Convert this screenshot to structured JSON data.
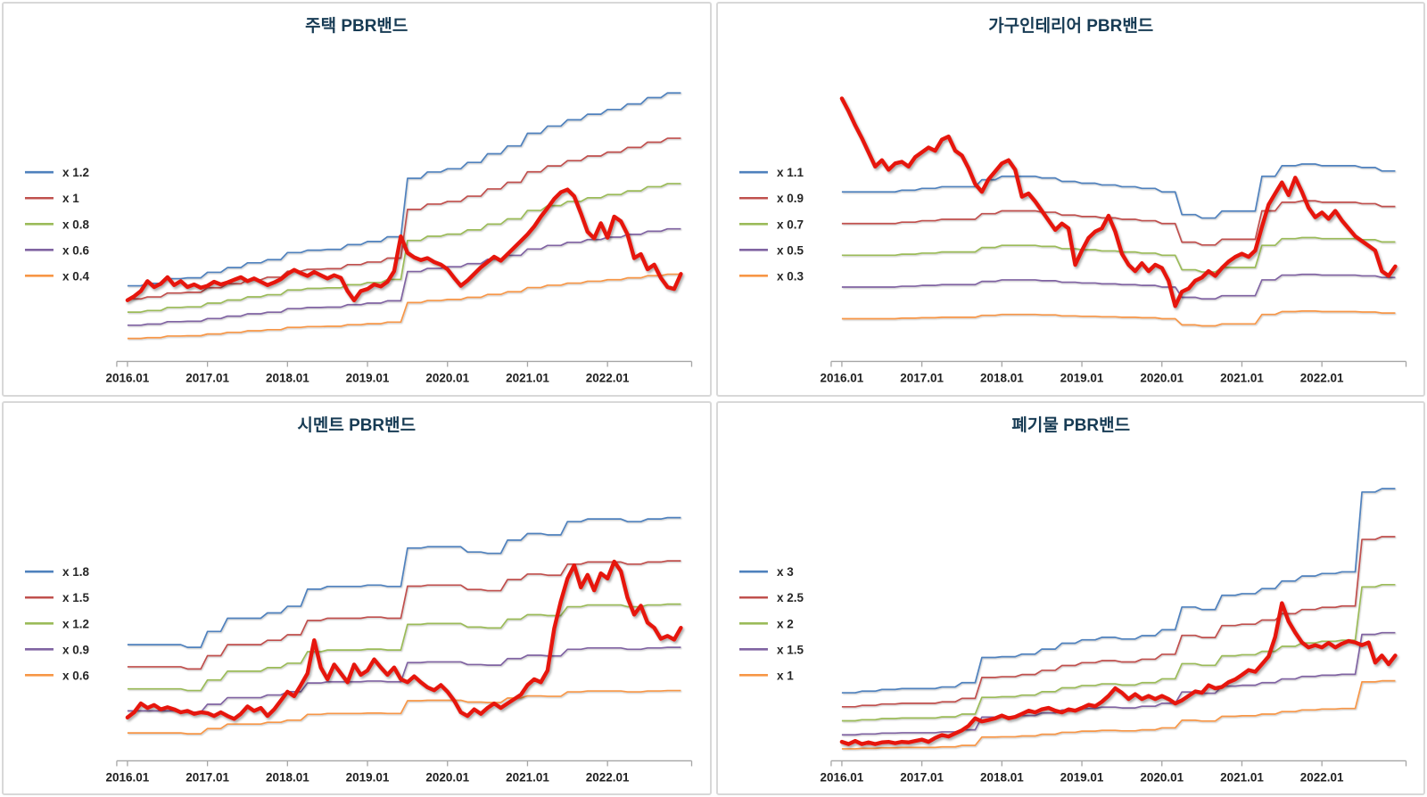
{
  "window": {
    "background": "#ffffff",
    "panel_border": "#d8d8d8"
  },
  "colors": {
    "band_colors": [
      "#4F81BD",
      "#C0504D",
      "#9BBB59",
      "#8064A2",
      "#F79646"
    ],
    "price_color": "#E6150B",
    "title_color": "#173B54",
    "axis_color": "#A6A6A6",
    "tick_label_color": "#1F1F1F",
    "legend_label_color": "#262626"
  },
  "x_axis": {
    "tick_labels": [
      "2016.01",
      "2017.01",
      "2018.01",
      "2019.01",
      "2020.01",
      "2021.01",
      "2022.01"
    ],
    "months_total": 84,
    "months_per_tick": 12
  },
  "chart_data": [
    {
      "type": "line",
      "key": "housing",
      "title": "주택 PBR밴드",
      "legend": [
        "x 1.2",
        "x 1",
        "x 0.8",
        "x 0.6",
        "x 0.4"
      ],
      "legend_position": "left",
      "grid": "off",
      "multipliers": [
        1.2,
        1,
        0.8,
        0.6,
        0.4
      ],
      "ylim": [
        0.05,
        4.55
      ],
      "base_quarterly": [
        1.0,
        1.03,
        1.09,
        1.1,
        1.17,
        1.23,
        1.29,
        1.33,
        1.42,
        1.45,
        1.46,
        1.52,
        1.56,
        1.62,
        2.36,
        2.44,
        2.48,
        2.56,
        2.67,
        2.77,
        2.93,
        3.02,
        3.1,
        3.17,
        3.23,
        3.3,
        3.38,
        3.44
      ],
      "price_monthly": [
        0.98,
        1.04,
        1.12,
        1.27,
        1.18,
        1.23,
        1.33,
        1.21,
        1.27,
        1.18,
        1.22,
        1.17,
        1.2,
        1.26,
        1.22,
        1.25,
        1.29,
        1.33,
        1.27,
        1.31,
        1.26,
        1.21,
        1.25,
        1.3,
        1.38,
        1.44,
        1.39,
        1.35,
        1.41,
        1.36,
        1.31,
        1.36,
        1.32,
        1.12,
        0.98,
        1.12,
        1.15,
        1.22,
        1.19,
        1.26,
        1.42,
        1.95,
        1.7,
        1.63,
        1.59,
        1.62,
        1.56,
        1.52,
        1.45,
        1.32,
        1.2,
        1.28,
        1.38,
        1.48,
        1.56,
        1.64,
        1.58,
        1.68,
        1.78,
        1.88,
        1.98,
        2.1,
        2.25,
        2.38,
        2.52,
        2.62,
        2.66,
        2.56,
        2.3,
        2.02,
        1.92,
        2.15,
        1.93,
        2.25,
        2.18,
        1.98,
        1.62,
        1.68,
        1.45,
        1.52,
        1.32,
        1.18,
        1.15,
        1.38
      ]
    },
    {
      "type": "line",
      "key": "furniture-interior",
      "title": "가구인테리어 PBR밴드",
      "legend": [
        "x 1.1",
        "x 0.9",
        "x 0.7",
        "x 0.5",
        "x 0.3"
      ],
      "legend_position": "left",
      "grid": "off",
      "multipliers": [
        1.1,
        0.9,
        0.7,
        0.5,
        0.3
      ],
      "ylim": [
        0.03,
        1.9
      ],
      "base_quarterly": [
        1.0,
        1.0,
        1.0,
        1.01,
        1.02,
        1.03,
        1.03,
        1.07,
        1.09,
        1.09,
        1.08,
        1.06,
        1.05,
        1.04,
        1.03,
        1.02,
        1.0,
        0.87,
        0.85,
        0.89,
        0.89,
        1.09,
        1.15,
        1.16,
        1.15,
        1.15,
        1.14,
        1.12
      ],
      "price_monthly": [
        1.69,
        1.61,
        1.52,
        1.44,
        1.35,
        1.26,
        1.3,
        1.24,
        1.28,
        1.29,
        1.26,
        1.32,
        1.35,
        1.38,
        1.36,
        1.43,
        1.45,
        1.36,
        1.33,
        1.25,
        1.15,
        1.1,
        1.18,
        1.23,
        1.28,
        1.3,
        1.24,
        1.07,
        1.09,
        1.04,
        0.98,
        0.92,
        0.86,
        0.9,
        0.87,
        0.64,
        0.73,
        0.81,
        0.85,
        0.87,
        0.95,
        0.85,
        0.71,
        0.64,
        0.6,
        0.65,
        0.6,
        0.64,
        0.62,
        0.54,
        0.38,
        0.47,
        0.49,
        0.54,
        0.56,
        0.6,
        0.57,
        0.62,
        0.66,
        0.69,
        0.71,
        0.69,
        0.73,
        0.88,
        1.02,
        1.09,
        1.16,
        1.08,
        1.19,
        1.1,
        1.0,
        0.94,
        0.97,
        0.93,
        0.98,
        0.92,
        0.87,
        0.82,
        0.79,
        0.76,
        0.73,
        0.6,
        0.57,
        0.63
      ]
    },
    {
      "type": "line",
      "key": "cement",
      "title": "시멘트 PBR밴드",
      "legend": [
        "x 1.8",
        "x 1.5",
        "x 1.2",
        "x 0.9",
        "x 0.6"
      ],
      "legend_position": "left",
      "grid": "off",
      "multipliers": [
        1.8,
        1.5,
        1.2,
        0.9,
        0.6
      ],
      "ylim": [
        0.22,
        4.25
      ],
      "base_quarterly": [
        1.0,
        1.0,
        1.0,
        0.98,
        1.1,
        1.2,
        1.2,
        1.24,
        1.29,
        1.42,
        1.44,
        1.44,
        1.45,
        1.44,
        1.73,
        1.74,
        1.74,
        1.7,
        1.69,
        1.79,
        1.84,
        1.83,
        1.93,
        1.95,
        1.95,
        1.93,
        1.95,
        1.96
      ],
      "price_monthly": [
        0.81,
        0.88,
        1.0,
        0.94,
        0.98,
        0.92,
        0.95,
        0.92,
        0.88,
        0.9,
        0.86,
        0.88,
        0.87,
        0.83,
        0.88,
        0.83,
        0.79,
        0.86,
        0.96,
        0.9,
        0.94,
        0.83,
        0.92,
        1.04,
        1.16,
        1.1,
        1.25,
        1.41,
        1.86,
        1.49,
        1.33,
        1.53,
        1.41,
        1.29,
        1.53,
        1.39,
        1.45,
        1.6,
        1.49,
        1.39,
        1.49,
        1.33,
        1.29,
        1.37,
        1.29,
        1.22,
        1.18,
        1.25,
        1.16,
        1.04,
        0.88,
        0.83,
        0.92,
        0.86,
        0.94,
        1.0,
        0.94,
        1.0,
        1.06,
        1.12,
        1.25,
        1.33,
        1.29,
        1.45,
        2.02,
        2.39,
        2.7,
        2.88,
        2.58,
        2.75,
        2.54,
        2.77,
        2.7,
        2.93,
        2.8,
        2.44,
        2.21,
        2.33,
        2.1,
        2.03,
        1.88,
        1.92,
        1.87,
        2.03
      ]
    },
    {
      "type": "line",
      "key": "waste",
      "title": "폐기물 PBR밴드",
      "legend": [
        "x 3",
        "x 2.5",
        "x 2",
        "x 1.5",
        "x 1"
      ],
      "legend_position": "left",
      "grid": "off",
      "multipliers": [
        3,
        2.5,
        2,
        1.5,
        1
      ],
      "ylim": [
        0.57,
        11.15
      ],
      "base_quarterly": [
        1.0,
        1.02,
        1.04,
        1.05,
        1.05,
        1.07,
        1.12,
        1.42,
        1.43,
        1.46,
        1.52,
        1.59,
        1.63,
        1.66,
        1.64,
        1.68,
        1.75,
        2.02,
        1.99,
        2.16,
        2.18,
        2.24,
        2.33,
        2.39,
        2.42,
        2.44,
        3.39,
        3.43
      ],
      "price_monthly": [
        1.25,
        1.17,
        1.28,
        1.17,
        1.23,
        1.17,
        1.23,
        1.25,
        1.2,
        1.25,
        1.23,
        1.28,
        1.33,
        1.25,
        1.39,
        1.49,
        1.44,
        1.55,
        1.66,
        1.82,
        2.09,
        1.98,
        2.03,
        2.09,
        2.19,
        2.09,
        2.14,
        2.25,
        2.36,
        2.3,
        2.41,
        2.46,
        2.36,
        2.3,
        2.41,
        2.36,
        2.46,
        2.57,
        2.52,
        2.68,
        2.89,
        3.16,
        3.0,
        2.78,
        2.95,
        2.78,
        2.89,
        2.78,
        2.89,
        2.78,
        2.62,
        2.73,
        2.89,
        3.05,
        3.0,
        3.27,
        3.16,
        3.21,
        3.38,
        3.48,
        3.64,
        3.81,
        3.75,
        4.02,
        4.3,
        5.0,
        6.2,
        5.55,
        5.15,
        4.8,
        4.62,
        4.7,
        4.62,
        4.78,
        4.62,
        4.75,
        4.85,
        4.8,
        4.7,
        4.8,
        4.08,
        4.33,
        4.02,
        4.33
      ]
    }
  ]
}
